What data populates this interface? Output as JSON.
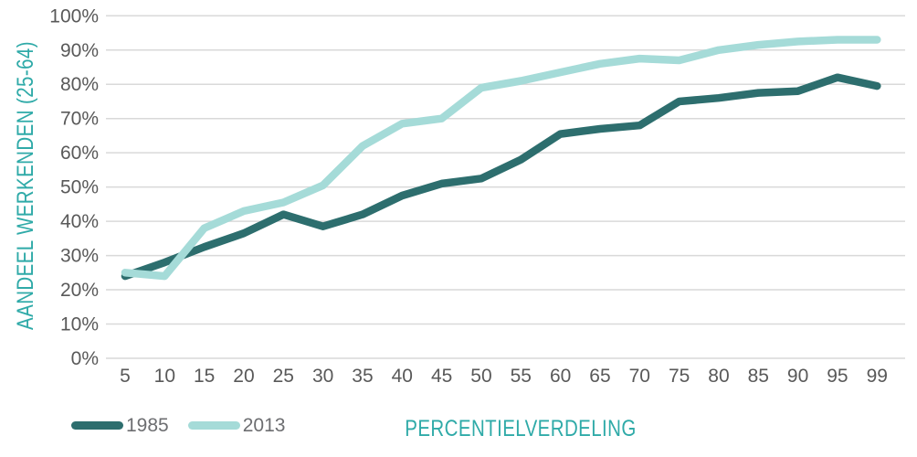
{
  "chart_data": {
    "type": "line",
    "title": "",
    "xlabel": "PERCENTIELVERDELING",
    "ylabel": "AANDEEL WERKENDEN (25-64)",
    "x_categories": [
      "5",
      "10",
      "15",
      "20",
      "25",
      "30",
      "35",
      "40",
      "45",
      "50",
      "55",
      "60",
      "65",
      "70",
      "75",
      "80",
      "85",
      "90",
      "95",
      "99"
    ],
    "y_tick_labels": [
      "0%",
      "10%",
      "20%",
      "30%",
      "40%",
      "50%",
      "60%",
      "70%",
      "80%",
      "90%",
      "100%"
    ],
    "ylim": [
      0,
      100
    ],
    "grid": "horizontal",
    "legend_position": "bottom-left",
    "series": [
      {
        "name": "1985",
        "color": "#2d6e6e",
        "values": [
          24,
          28,
          32.5,
          36.5,
          42,
          38.5,
          42,
          47.5,
          51,
          52.5,
          58,
          65.5,
          67,
          68,
          75,
          76,
          77.5,
          78,
          82,
          79.5
        ]
      },
      {
        "name": "2013",
        "color": "#a5dbd8",
        "values": [
          25,
          24,
          38,
          43,
          45.5,
          50.5,
          62,
          68.5,
          70,
          79,
          81,
          83.5,
          86,
          87.5,
          87,
          90,
          91.5,
          92.5,
          93,
          93
        ]
      }
    ]
  },
  "styles": {
    "axis_title_color": "#2faaa8",
    "tick_label_color": "#595959",
    "legend_text_color": "#6d6e71",
    "gridline_color": "#d9d9d9",
    "background": "#ffffff"
  }
}
